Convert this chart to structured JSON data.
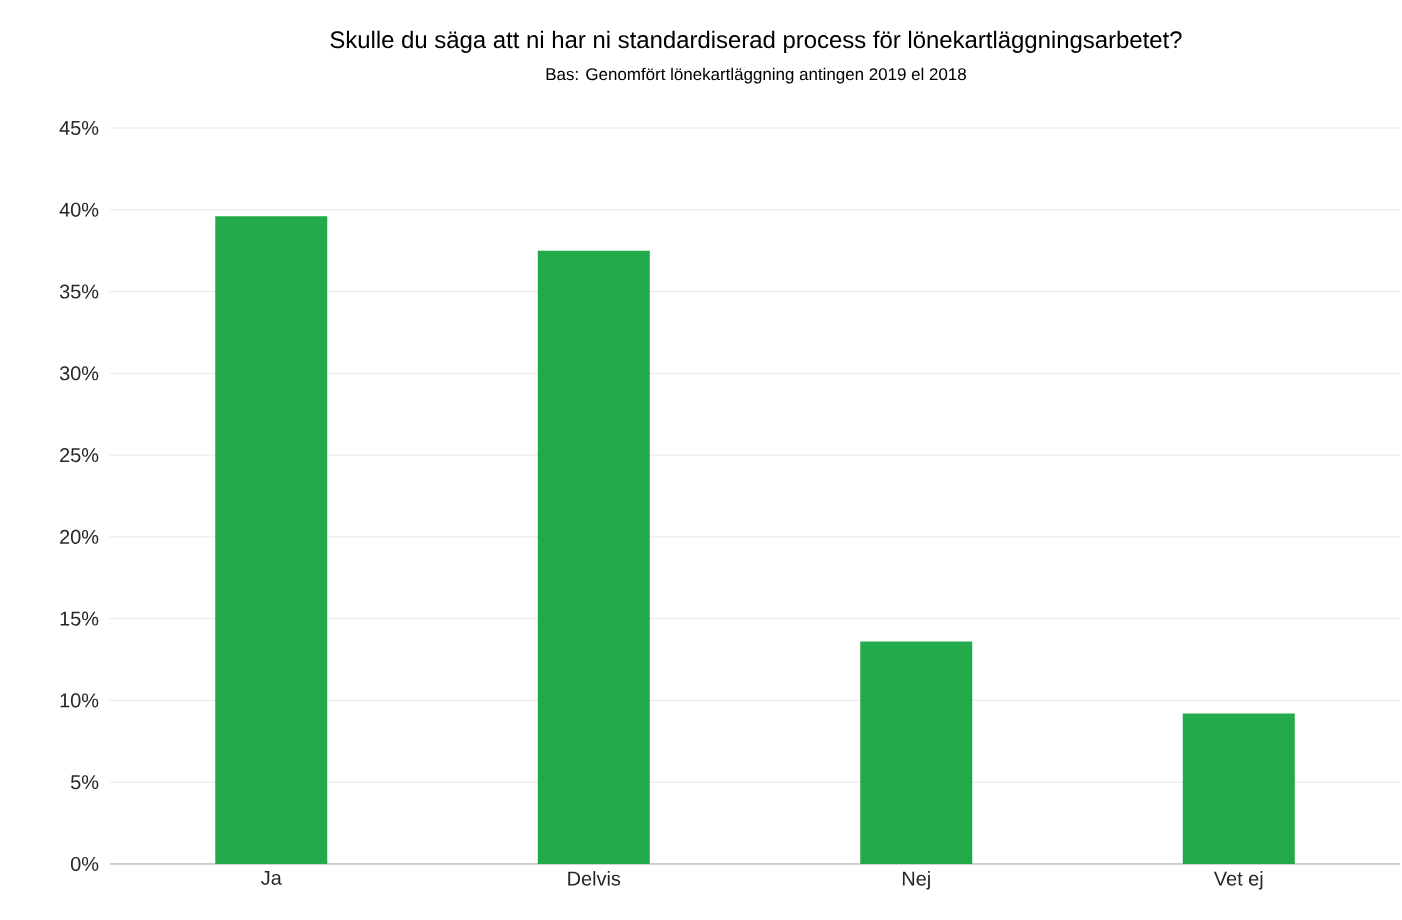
{
  "chart_data": {
    "type": "bar",
    "title": "Skulle du säga att ni har ni standardiserad process för lönekartläggningsarbetet?",
    "subtitle": "Bas: Genomfört lönekartläggning antingen 2019 el 2018",
    "categories": [
      "Ja",
      "Delvis",
      "Nej",
      "Vet ej"
    ],
    "values": [
      39.6,
      37.5,
      13.6,
      9.2
    ],
    "color": "#22a94a",
    "ylim": [
      0,
      45
    ],
    "yticks": [
      {
        "value": 0,
        "label": "0%"
      },
      {
        "value": 5,
        "label": "5%"
      },
      {
        "value": 10,
        "label": "10%"
      },
      {
        "value": 15,
        "label": "15%"
      },
      {
        "value": 20,
        "label": "20%"
      },
      {
        "value": 25,
        "label": "25%"
      },
      {
        "value": 30,
        "label": "30%"
      },
      {
        "value": 35,
        "label": "35%"
      },
      {
        "value": 40,
        "label": "40%"
      },
      {
        "value": 45,
        "label": "45%"
      }
    ],
    "grid": "y"
  }
}
